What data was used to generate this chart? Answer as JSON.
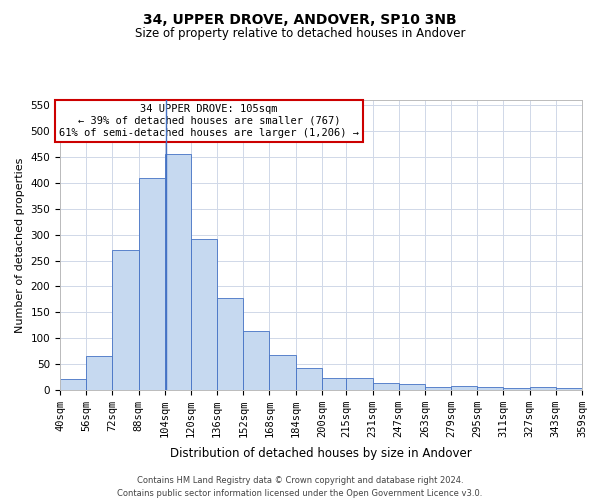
{
  "title": "34, UPPER DROVE, ANDOVER, SP10 3NB",
  "subtitle": "Size of property relative to detached houses in Andover",
  "xlabel": "Distribution of detached houses by size in Andover",
  "ylabel": "Number of detached properties",
  "footer_line1": "Contains HM Land Registry data © Crown copyright and database right 2024.",
  "footer_line2": "Contains public sector information licensed under the Open Government Licence v3.0.",
  "annotation_line1": "34 UPPER DROVE: 105sqm",
  "annotation_line2": "← 39% of detached houses are smaller (767)",
  "annotation_line3": "61% of semi-detached houses are larger (1,206) →",
  "property_size": 105,
  "bin_edges": [
    40,
    56,
    72,
    88,
    104,
    120,
    136,
    152,
    168,
    184,
    200,
    215,
    231,
    247,
    263,
    279,
    295,
    311,
    327,
    343,
    359
  ],
  "bar_values": [
    22,
    65,
    270,
    410,
    455,
    291,
    178,
    113,
    68,
    43,
    24,
    24,
    14,
    11,
    6,
    7,
    5,
    4,
    5,
    4
  ],
  "bar_color": "#c6d9f0",
  "bar_edge_color": "#4472c4",
  "vline_color": "#4472c4",
  "annotation_box_color": "#cc0000",
  "grid_color": "#d0d8e8",
  "ylim": [
    0,
    560
  ],
  "yticks": [
    0,
    50,
    100,
    150,
    200,
    250,
    300,
    350,
    400,
    450,
    500,
    550
  ],
  "background_color": "#ffffff",
  "title_fontsize": 10,
  "subtitle_fontsize": 8.5,
  "xlabel_fontsize": 8.5,
  "ylabel_fontsize": 8,
  "tick_fontsize": 7.5,
  "footer_fontsize": 6,
  "annotation_fontsize": 7.5
}
